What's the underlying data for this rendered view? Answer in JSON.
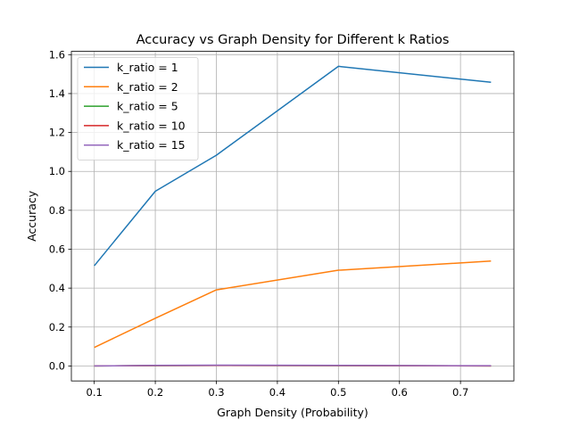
{
  "chart_data": {
    "type": "line",
    "title": "Accuracy vs Graph Density for Different k Ratios",
    "xlabel": "Graph Density (Probability)",
    "ylabel": "Accuracy",
    "x": [
      0.1,
      0.2,
      0.3,
      0.5,
      0.75
    ],
    "xlim": [
      0.0625,
      0.7875
    ],
    "ylim": [
      -0.077,
      1.617
    ],
    "xticks": [
      0.1,
      0.2,
      0.3,
      0.4,
      0.5,
      0.6,
      0.7
    ],
    "xtick_labels": [
      "0.1",
      "0.2",
      "0.3",
      "0.4",
      "0.5",
      "0.6",
      "0.7"
    ],
    "yticks": [
      0.0,
      0.2,
      0.4,
      0.6,
      0.8,
      1.0,
      1.2,
      1.4,
      1.6
    ],
    "ytick_labels": [
      "0.0",
      "0.2",
      "0.4",
      "0.6",
      "0.8",
      "1.0",
      "1.2",
      "1.4",
      "1.6"
    ],
    "grid": true,
    "legend_position": "top-left",
    "series": [
      {
        "name": "k_ratio = 1",
        "color": "#1f77b4",
        "values": [
          0.515,
          0.898,
          1.083,
          1.54,
          1.458
        ]
      },
      {
        "name": "k_ratio = 2",
        "color": "#ff7f0e",
        "values": [
          0.095,
          0.245,
          0.391,
          0.492,
          0.539
        ]
      },
      {
        "name": "k_ratio = 5",
        "color": "#2ca02c",
        "values": [
          0.0,
          0.002,
          0.003,
          0.002,
          0.0
        ]
      },
      {
        "name": "k_ratio = 10",
        "color": "#d62728",
        "values": [
          0.0,
          0.002,
          0.003,
          0.002,
          0.0
        ]
      },
      {
        "name": "k_ratio = 15",
        "color": "#9467bd",
        "values": [
          0.0,
          0.003,
          0.004,
          0.003,
          0.001
        ]
      }
    ]
  }
}
